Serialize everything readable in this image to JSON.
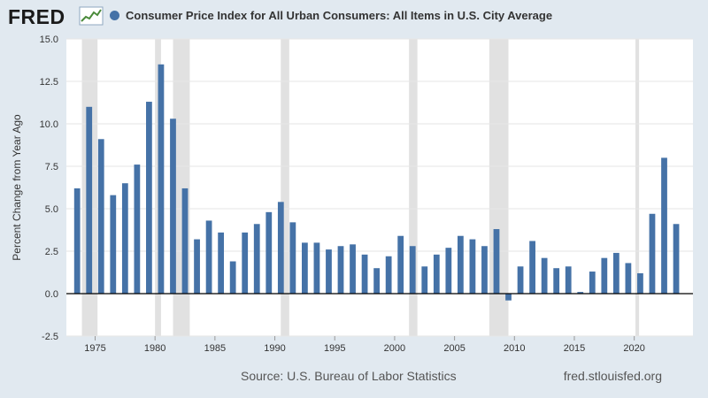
{
  "header": {
    "logo_text": "FRED",
    "logo_icon": "line-chart-icon",
    "title": "Consumer Price Index for All Urban Consumers: All Items in U.S. City Average"
  },
  "footer": {
    "source": "Source: U.S. Bureau of Labor Statistics",
    "site": "fred.stlouisfed.org"
  },
  "colors": {
    "page_background": "#e1e9f0",
    "plot_background": "#ffffff",
    "bar": "#4572a7",
    "recession_shading": "#e1e1e1",
    "zero_line": "#000000"
  },
  "chart_data": {
    "type": "bar",
    "title": "Consumer Price Index for All Urban Consumers: All Items in U.S. City Average",
    "xlabel": "",
    "ylabel": "Percent Change from Year Ago",
    "ylim": [
      -2.5,
      15.0
    ],
    "yticks": [
      "15.0",
      "12.5",
      "10.0",
      "7.5",
      "5.0",
      "2.5",
      "0.0",
      "-2.5"
    ],
    "xticks": [
      "1975",
      "1980",
      "1985",
      "1990",
      "1995",
      "2000",
      "2005",
      "2010",
      "2015",
      "2020"
    ],
    "grid": "horizontal",
    "recessions": [
      [
        1973.9,
        1975.2
      ],
      [
        1980.0,
        1980.5
      ],
      [
        1981.5,
        1982.9
      ],
      [
        1990.5,
        1991.2
      ],
      [
        2001.2,
        2001.9
      ],
      [
        2007.9,
        2009.5
      ],
      [
        2020.1,
        2020.4
      ]
    ],
    "series": [
      {
        "name": "Consumer Price Index for All Urban Consumers: All Items in U.S. City Average",
        "x": [
          1973,
          1974,
          1975,
          1976,
          1977,
          1978,
          1979,
          1980,
          1981,
          1982,
          1983,
          1984,
          1985,
          1986,
          1987,
          1988,
          1989,
          1990,
          1991,
          1992,
          1993,
          1994,
          1995,
          1996,
          1997,
          1998,
          1999,
          2000,
          2001,
          2002,
          2003,
          2004,
          2005,
          2006,
          2007,
          2008,
          2009,
          2010,
          2011,
          2012,
          2013,
          2014,
          2015,
          2016,
          2017,
          2018,
          2019,
          2020,
          2021,
          2022,
          2023
        ],
        "values": [
          6.2,
          11.0,
          9.1,
          5.8,
          6.5,
          7.6,
          11.3,
          13.5,
          10.3,
          6.2,
          3.2,
          4.3,
          3.6,
          1.9,
          3.6,
          4.1,
          4.8,
          5.4,
          4.2,
          3.0,
          3.0,
          2.6,
          2.8,
          2.9,
          2.3,
          1.5,
          2.2,
          3.4,
          2.8,
          1.6,
          2.3,
          2.7,
          3.4,
          3.2,
          2.8,
          3.8,
          -0.4,
          1.6,
          3.1,
          2.1,
          1.5,
          1.6,
          0.1,
          1.3,
          2.1,
          2.4,
          1.8,
          1.2,
          4.7,
          8.0,
          4.1
        ]
      }
    ]
  }
}
